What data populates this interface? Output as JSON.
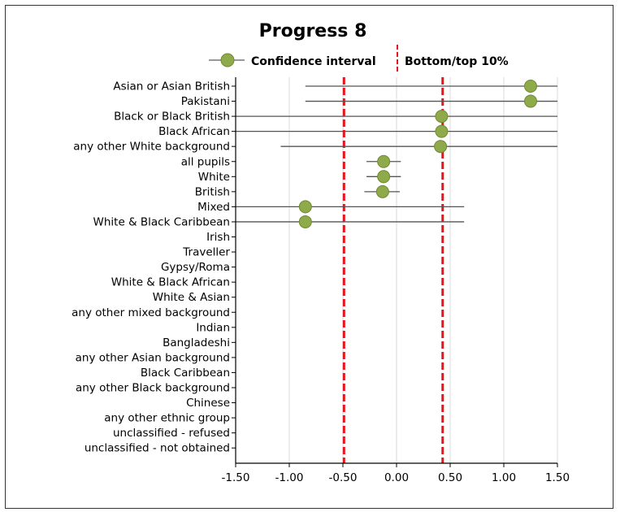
{
  "chart_data": {
    "type": "scatter",
    "title": "Progress 8",
    "legend": {
      "ci_label": "Confidence interval",
      "threshold_label": "Bottom/top 10%",
      "placement": "top"
    },
    "xlim": [
      -1.5,
      1.5
    ],
    "xticks": [
      -1.5,
      -1.0,
      -0.5,
      0.0,
      0.5,
      1.0,
      1.5
    ],
    "xtick_labels": [
      "-1.50",
      "-1.00",
      "-0.50",
      "0.00",
      "0.50",
      "1.00",
      "1.50"
    ],
    "grid": true,
    "thresholds": [
      -0.49,
      0.43
    ],
    "categories": [
      "Asian or Asian British",
      "Pakistani",
      "Black or Black British",
      "Black African",
      "any other White background",
      "all pupils",
      "White",
      "British",
      "Mixed",
      "White & Black Caribbean",
      "Irish",
      "Traveller",
      "Gypsy/Roma",
      "White & Black African",
      "White & Asian",
      "any other mixed background",
      "Indian",
      "Bangladeshi",
      "any other Asian background",
      "Black Caribbean",
      "any other Black background",
      "Chinese",
      "any other ethnic group",
      "unclassified - refused",
      "unclassified - not obtained"
    ],
    "values": [
      1.25,
      1.25,
      0.42,
      0.42,
      0.41,
      -0.12,
      -0.12,
      -0.13,
      -0.85,
      -0.85,
      null,
      null,
      null,
      null,
      null,
      null,
      null,
      null,
      null,
      null,
      null,
      null,
      null,
      null,
      null
    ],
    "ci_low": [
      -0.85,
      -0.85,
      -1.5,
      -1.5,
      -1.08,
      -0.28,
      -0.28,
      -0.3,
      -1.5,
      -1.5,
      null,
      null,
      null,
      null,
      null,
      null,
      null,
      null,
      null,
      null,
      null,
      null,
      null,
      null,
      null
    ],
    "ci_high": [
      1.5,
      1.5,
      1.5,
      1.5,
      1.5,
      0.04,
      0.04,
      0.03,
      0.63,
      0.63,
      null,
      null,
      null,
      null,
      null,
      null,
      null,
      null,
      null,
      null,
      null,
      null,
      null,
      null,
      null
    ],
    "colors": {
      "marker": "#8faa4a",
      "marker_stroke": "#6f8a30",
      "ci_line": "#555555",
      "threshold": "#e8141b",
      "grid": "#d9d9d9",
      "axis": "#000000"
    }
  }
}
